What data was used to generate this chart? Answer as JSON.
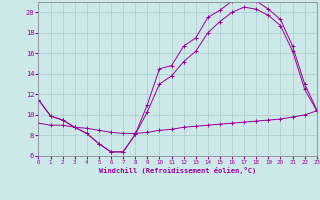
{
  "xlabel": "Windchill (Refroidissement éolien,°C)",
  "bg_color": "#cce8e8",
  "line_color": "#990099",
  "grid_color": "#aacccc",
  "xlim": [
    0,
    23
  ],
  "ylim": [
    6,
    21
  ],
  "yticks": [
    6,
    8,
    10,
    12,
    14,
    16,
    18,
    20
  ],
  "xticks": [
    0,
    1,
    2,
    3,
    4,
    5,
    6,
    7,
    8,
    9,
    10,
    11,
    12,
    13,
    14,
    15,
    16,
    17,
    18,
    19,
    20,
    21,
    22,
    23
  ],
  "curve1_x": [
    0,
    1,
    2,
    3,
    4,
    5,
    6,
    7,
    8,
    9,
    10,
    11,
    12,
    13,
    14,
    15,
    16,
    17,
    18,
    19,
    20,
    21,
    22,
    23
  ],
  "curve1_y": [
    11.5,
    9.9,
    9.5,
    8.8,
    8.2,
    7.2,
    6.4,
    6.4,
    8.1,
    11.0,
    14.5,
    14.8,
    16.7,
    17.5,
    19.5,
    20.2,
    21.1,
    21.3,
    21.1,
    20.3,
    19.3,
    16.7,
    13.0,
    10.5
  ],
  "curve2_x": [
    0,
    1,
    2,
    3,
    4,
    5,
    6,
    7,
    8,
    9,
    10,
    11,
    12,
    13,
    14,
    15,
    16,
    17,
    18,
    19,
    20,
    21,
    22,
    23
  ],
  "curve2_y": [
    11.5,
    9.9,
    9.5,
    8.8,
    8.2,
    7.2,
    6.4,
    6.4,
    8.1,
    10.3,
    13.0,
    13.8,
    15.2,
    16.2,
    18.0,
    19.1,
    20.0,
    20.5,
    20.3,
    19.7,
    18.7,
    16.2,
    12.5,
    10.4
  ],
  "curve3_x": [
    0,
    1,
    2,
    3,
    4,
    5,
    6,
    7,
    8,
    9,
    10,
    11,
    12,
    13,
    14,
    15,
    16,
    17,
    18,
    19,
    20,
    21,
    22,
    23
  ],
  "curve3_y": [
    9.2,
    9.0,
    9.0,
    8.8,
    8.7,
    8.5,
    8.3,
    8.2,
    8.2,
    8.3,
    8.5,
    8.6,
    8.8,
    8.9,
    9.0,
    9.1,
    9.2,
    9.3,
    9.4,
    9.5,
    9.6,
    9.8,
    10.0,
    10.4
  ]
}
